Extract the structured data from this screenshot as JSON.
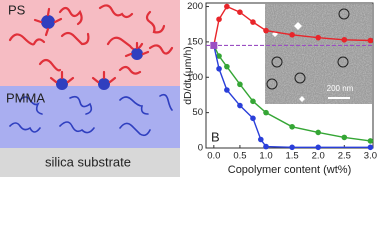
{
  "schematic": {
    "top_label": "PS",
    "middle_label": "PMMA",
    "bottom_label": "silica substrate"
  },
  "chart_data": {
    "type": "line",
    "panel_label": "B",
    "inset_scale_label": "200 nm",
    "x_label": "Copolymer content (wt%)",
    "y_label": "dD/dt (μm/h)",
    "xlim": [
      -0.15,
      3.05
    ],
    "ylim": [
      0,
      205
    ],
    "xticks": [
      {
        "value": 0,
        "label": "0.0"
      },
      0.5,
      {
        "value": 1,
        "label": "1.0"
      },
      1.5,
      {
        "value": 2,
        "label": "2.0"
      },
      2.5,
      {
        "value": 3,
        "label": "3.0"
      }
    ],
    "yticks": [
      0,
      50,
      100,
      150,
      200
    ],
    "reference_line": 145,
    "reference_color": "#9b4fc2",
    "series": [
      {
        "name": "red",
        "color": "#e8252a",
        "x": [
          0,
          0.1,
          0.25,
          0.5,
          0.75,
          1.0,
          1.5,
          2.0,
          2.5,
          3.0
        ],
        "values": [
          145,
          182,
          200,
          192,
          178,
          166,
          160,
          156,
          153,
          152
        ]
      },
      {
        "name": "green",
        "color": "#35a635",
        "x": [
          0,
          0.1,
          0.25,
          0.5,
          0.75,
          1.0,
          1.5,
          2.0,
          2.5,
          3.0
        ],
        "values": [
          145,
          130,
          115,
          90,
          66,
          50,
          30,
          22,
          15,
          10
        ]
      },
      {
        "name": "blue",
        "color": "#2a3fd9",
        "x": [
          0,
          0.1,
          0.25,
          0.5,
          0.75,
          0.9,
          1.0,
          1.5,
          2.0,
          3.0
        ],
        "values": [
          145,
          112,
          82,
          60,
          42,
          12,
          2,
          1,
          1,
          1
        ]
      }
    ]
  }
}
